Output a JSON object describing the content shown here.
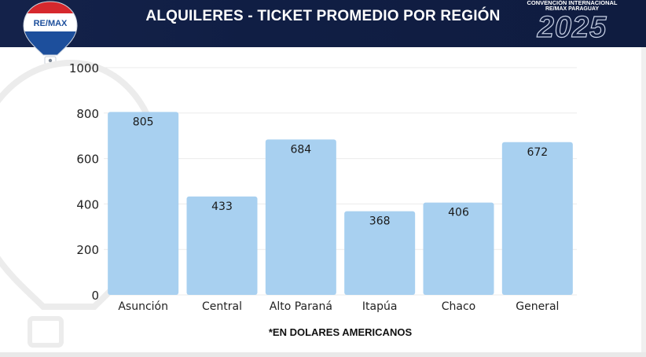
{
  "header": {
    "title": "ALQUILERES  - TICKET PROMEDIO POR REGIÓN",
    "logo_text": "RE/MAX",
    "convention_line1": "CONVENCIÓN INTERNACIONAL",
    "convention_line2": "RE/MAX PARAGUAY",
    "convention_year": "2025"
  },
  "colors": {
    "header_bg": "#12214a",
    "bar": "#a8d0f0",
    "grid": "#ececec",
    "text": "#222222"
  },
  "chart_data": {
    "type": "bar",
    "categories": [
      "Asunción",
      "Central",
      "Alto Paraná",
      "Itapúa",
      "Chaco",
      "General"
    ],
    "values": [
      805,
      433,
      684,
      368,
      406,
      672
    ],
    "title": "",
    "xlabel": "*EN DOLARES AMERICANOS",
    "ylabel": "",
    "ylim": [
      0,
      1000
    ],
    "yticks": [
      0,
      200,
      400,
      600,
      800,
      1000
    ],
    "grid": true,
    "data_labels": true
  }
}
